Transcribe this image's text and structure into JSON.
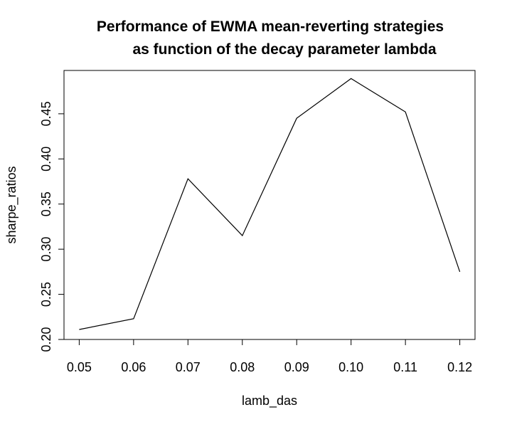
{
  "chart_data": {
    "type": "line",
    "title_lines": [
      "Performance of EWMA mean-reverting strategies",
      "as function of the decay parameter lambda"
    ],
    "xlabel": "lamb_das",
    "ylabel": "sharpe_ratios",
    "x": [
      0.05,
      0.06,
      0.07,
      0.08,
      0.09,
      0.1,
      0.11,
      0.12
    ],
    "y": [
      0.211,
      0.223,
      0.378,
      0.315,
      0.445,
      0.489,
      0.452,
      0.275
    ],
    "x_ticks": [
      "0.05",
      "0.06",
      "0.07",
      "0.08",
      "0.09",
      "0.10",
      "0.11",
      "0.12"
    ],
    "y_ticks": [
      "0.20",
      "0.25",
      "0.30",
      "0.35",
      "0.40",
      "0.45"
    ],
    "xlim": [
      0.0472,
      0.1228
    ],
    "ylim": [
      0.2,
      0.498
    ],
    "grid": false,
    "line_color": "#000000"
  }
}
